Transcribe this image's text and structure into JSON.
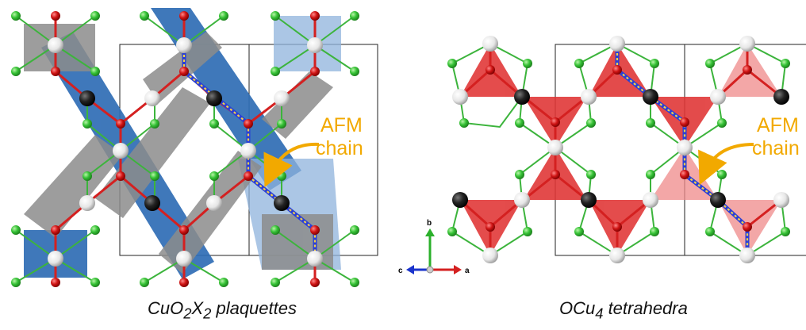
{
  "panels": [
    {
      "caption_parts": [
        "CuO",
        "2",
        "X",
        "2",
        " plaquettes"
      ],
      "annotation_line1": "AFM",
      "annotation_line2": "chain"
    },
    {
      "caption_parts": [
        "OCu",
        "4",
        " tetrahedra"
      ],
      "annotation_line1": "AFM",
      "annotation_line2": "chain"
    }
  ],
  "axes": {
    "b": "b",
    "c": "c",
    "a": "a"
  },
  "colors": {
    "polyhedron_blue": "#2f6db5",
    "polyhedron_gray": "#8c8c8c",
    "polyhedron_red": "#e03333",
    "bond_red": "#d42020",
    "bond_green": "#3cb43c",
    "atom_green": "#3cc23c",
    "atom_red": "#cc1111",
    "atom_white": "#e8e8e8",
    "atom_black": "#111111",
    "chain_blue": "#2a3fd6",
    "chain_yellow": "#f2d04a",
    "annotation": "#f2a900"
  }
}
